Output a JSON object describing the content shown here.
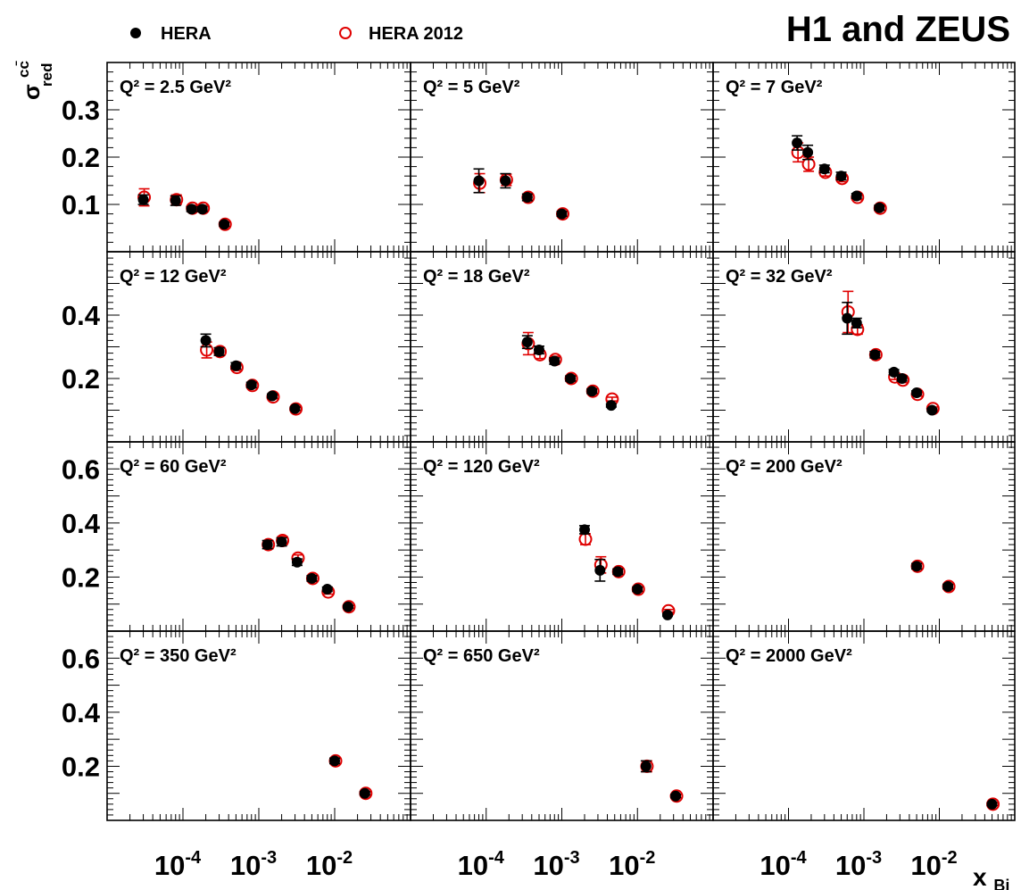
{
  "title": "H1 and ZEUS",
  "legend": [
    {
      "label": "HERA",
      "marker": "filled-circle",
      "color": "#000000"
    },
    {
      "label": "HERA 2012",
      "marker": "open-circle",
      "color": "#e00000"
    }
  ],
  "colors": {
    "hera": "#000000",
    "hera2012": "#e00000"
  },
  "chart_data": {
    "type": "scatter",
    "xlabel": "x",
    "xlabel_sub": "Bj",
    "ylabel": "σ",
    "ylabel_sup": "cc̄",
    "ylabel_sub": "red",
    "x_scale": "log",
    "xlim": [
      1e-05,
      0.1
    ],
    "x_ticks": [
      0.0001,
      0.001,
      0.01
    ],
    "x_tick_labels": [
      {
        "base": "10",
        "exp": "-4"
      },
      {
        "base": "10",
        "exp": "-3"
      },
      {
        "base": "10",
        "exp": "-2"
      }
    ],
    "rows": [
      {
        "ylim": [
          0,
          0.4
        ],
        "y_ticks": [
          0.1,
          0.2,
          0.3
        ],
        "y_tick_labels": [
          "0.1",
          "0.2",
          "0.3"
        ]
      },
      {
        "ylim": [
          0,
          0.6
        ],
        "y_ticks": [
          0.2,
          0.4
        ],
        "y_tick_labels": [
          "0.2",
          "0.4"
        ]
      },
      {
        "ylim": [
          0,
          0.7
        ],
        "y_ticks": [
          0.2,
          0.4,
          0.6
        ],
        "y_tick_labels": [
          "0.2",
          "0.4",
          "0.6"
        ]
      },
      {
        "ylim": [
          0,
          0.7
        ],
        "y_ticks": [
          0.2,
          0.4,
          0.6
        ],
        "y_tick_labels": [
          "0.2",
          "0.4",
          "0.6"
        ]
      }
    ],
    "panels": [
      {
        "label": "Q² = 2.5 GeV²",
        "hera": [
          {
            "x": 3e-05,
            "y": 0.11,
            "err": 0.01
          },
          {
            "x": 8e-05,
            "y": 0.108,
            "err": 0.01
          },
          {
            "x": 0.00013,
            "y": 0.09,
            "err": 0.005
          },
          {
            "x": 0.00018,
            "y": 0.09,
            "err": 0.005
          },
          {
            "x": 0.00035,
            "y": 0.058,
            "err": 0.004
          }
        ],
        "hera2012": [
          {
            "x": 3e-05,
            "y": 0.115,
            "err": 0.018
          },
          {
            "x": 8e-05,
            "y": 0.11,
            "err": 0.01
          },
          {
            "x": 0.00013,
            "y": 0.092,
            "err": 0.006
          },
          {
            "x": 0.00018,
            "y": 0.092,
            "err": 0.006
          },
          {
            "x": 0.00035,
            "y": 0.058,
            "err": 0.005
          }
        ]
      },
      {
        "label": "Q² = 5 GeV²",
        "hera": [
          {
            "x": 8e-05,
            "y": 0.15,
            "err": 0.025
          },
          {
            "x": 0.00018,
            "y": 0.15,
            "err": 0.015
          },
          {
            "x": 0.00035,
            "y": 0.115,
            "err": 0.007
          },
          {
            "x": 0.001,
            "y": 0.08,
            "err": 0.005
          }
        ],
        "hera2012": [
          {
            "x": 8e-05,
            "y": 0.145,
            "err": 0.02
          },
          {
            "x": 0.00018,
            "y": 0.152,
            "err": 0.012
          },
          {
            "x": 0.00035,
            "y": 0.115,
            "err": 0.006
          },
          {
            "x": 0.001,
            "y": 0.08,
            "err": 0.005
          }
        ]
      },
      {
        "label": "Q² = 7 GeV²",
        "hera": [
          {
            "x": 0.00013,
            "y": 0.23,
            "err": 0.015
          },
          {
            "x": 0.00018,
            "y": 0.21,
            "err": 0.015
          },
          {
            "x": 0.0003,
            "y": 0.175,
            "err": 0.008
          },
          {
            "x": 0.0005,
            "y": 0.16,
            "err": 0.008
          },
          {
            "x": 0.0008,
            "y": 0.118,
            "err": 0.005
          },
          {
            "x": 0.0016,
            "y": 0.093,
            "err": 0.005
          }
        ],
        "hera2012": [
          {
            "x": 0.00013,
            "y": 0.21,
            "err": 0.02
          },
          {
            "x": 0.00018,
            "y": 0.185,
            "err": 0.015
          },
          {
            "x": 0.0003,
            "y": 0.168,
            "err": 0.008
          },
          {
            "x": 0.0005,
            "y": 0.155,
            "err": 0.007
          },
          {
            "x": 0.0008,
            "y": 0.115,
            "err": 0.005
          },
          {
            "x": 0.0016,
            "y": 0.092,
            "err": 0.004
          }
        ]
      },
      {
        "label": "Q² = 12 GeV²",
        "hera": [
          {
            "x": 0.0002,
            "y": 0.32,
            "err": 0.02
          },
          {
            "x": 0.0003,
            "y": 0.285,
            "err": 0.012
          },
          {
            "x": 0.0005,
            "y": 0.24,
            "err": 0.01
          },
          {
            "x": 0.0008,
            "y": 0.18,
            "err": 0.008
          },
          {
            "x": 0.0015,
            "y": 0.145,
            "err": 0.006
          },
          {
            "x": 0.003,
            "y": 0.105,
            "err": 0.005
          }
        ],
        "hera2012": [
          {
            "x": 0.0002,
            "y": 0.29,
            "err": 0.025
          },
          {
            "x": 0.0003,
            "y": 0.285,
            "err": 0.012
          },
          {
            "x": 0.0005,
            "y": 0.235,
            "err": 0.01
          },
          {
            "x": 0.0008,
            "y": 0.178,
            "err": 0.008
          },
          {
            "x": 0.0015,
            "y": 0.142,
            "err": 0.006
          },
          {
            "x": 0.003,
            "y": 0.104,
            "err": 0.005
          }
        ]
      },
      {
        "label": "Q² = 18 GeV²",
        "hera": [
          {
            "x": 0.00035,
            "y": 0.315,
            "err": 0.02
          },
          {
            "x": 0.0005,
            "y": 0.29,
            "err": 0.012
          },
          {
            "x": 0.0008,
            "y": 0.255,
            "err": 0.01
          },
          {
            "x": 0.0013,
            "y": 0.2,
            "err": 0.008
          },
          {
            "x": 0.0025,
            "y": 0.16,
            "err": 0.007
          },
          {
            "x": 0.0045,
            "y": 0.115,
            "err": 0.005
          }
        ],
        "hera2012": [
          {
            "x": 0.00035,
            "y": 0.31,
            "err": 0.035
          },
          {
            "x": 0.0005,
            "y": 0.275,
            "err": 0.012
          },
          {
            "x": 0.0008,
            "y": 0.26,
            "err": 0.01
          },
          {
            "x": 0.0013,
            "y": 0.2,
            "err": 0.008
          },
          {
            "x": 0.0025,
            "y": 0.16,
            "err": 0.007
          },
          {
            "x": 0.0045,
            "y": 0.135,
            "err": 0.006
          }
        ]
      },
      {
        "label": "Q² = 32 GeV²",
        "hera": [
          {
            "x": 0.0006,
            "y": 0.39,
            "err": 0.05
          },
          {
            "x": 0.0008,
            "y": 0.375,
            "err": 0.015
          },
          {
            "x": 0.0014,
            "y": 0.275,
            "err": 0.01
          },
          {
            "x": 0.0025,
            "y": 0.22,
            "err": 0.008
          },
          {
            "x": 0.0032,
            "y": 0.2,
            "err": 0.008
          },
          {
            "x": 0.005,
            "y": 0.155,
            "err": 0.006
          },
          {
            "x": 0.008,
            "y": 0.1,
            "err": 0.005
          }
        ],
        "hera2012": [
          {
            "x": 0.0006,
            "y": 0.41,
            "err": 0.065
          },
          {
            "x": 0.0008,
            "y": 0.355,
            "err": 0.015
          },
          {
            "x": 0.0014,
            "y": 0.275,
            "err": 0.01
          },
          {
            "x": 0.0025,
            "y": 0.205,
            "err": 0.008
          },
          {
            "x": 0.0032,
            "y": 0.195,
            "err": 0.008
          },
          {
            "x": 0.005,
            "y": 0.15,
            "err": 0.006
          },
          {
            "x": 0.008,
            "y": 0.105,
            "err": 0.005
          }
        ]
      },
      {
        "label": "Q² = 60 GeV²",
        "hera": [
          {
            "x": 0.0013,
            "y": 0.32,
            "err": 0.015
          },
          {
            "x": 0.002,
            "y": 0.33,
            "err": 0.015
          },
          {
            "x": 0.0032,
            "y": 0.255,
            "err": 0.012
          },
          {
            "x": 0.005,
            "y": 0.195,
            "err": 0.01
          },
          {
            "x": 0.008,
            "y": 0.155,
            "err": 0.008
          },
          {
            "x": 0.015,
            "y": 0.09,
            "err": 0.005
          }
        ],
        "hera2012": [
          {
            "x": 0.0013,
            "y": 0.32,
            "err": 0.015
          },
          {
            "x": 0.002,
            "y": 0.335,
            "err": 0.015
          },
          {
            "x": 0.0032,
            "y": 0.27,
            "err": 0.012
          },
          {
            "x": 0.005,
            "y": 0.195,
            "err": 0.01
          },
          {
            "x": 0.008,
            "y": 0.145,
            "err": 0.008
          },
          {
            "x": 0.015,
            "y": 0.09,
            "err": 0.005
          }
        ]
      },
      {
        "label": "Q² = 120 GeV²",
        "hera": [
          {
            "x": 0.002,
            "y": 0.375,
            "err": 0.015
          },
          {
            "x": 0.0032,
            "y": 0.225,
            "err": 0.04
          },
          {
            "x": 0.0055,
            "y": 0.22,
            "err": 0.01
          },
          {
            "x": 0.01,
            "y": 0.155,
            "err": 0.008
          },
          {
            "x": 0.025,
            "y": 0.06,
            "err": 0.004
          }
        ],
        "hera2012": [
          {
            "x": 0.002,
            "y": 0.34,
            "err": 0.02
          },
          {
            "x": 0.0032,
            "y": 0.245,
            "err": 0.03
          },
          {
            "x": 0.0055,
            "y": 0.22,
            "err": 0.01
          },
          {
            "x": 0.01,
            "y": 0.155,
            "err": 0.008
          },
          {
            "x": 0.025,
            "y": 0.075,
            "err": 0.005
          }
        ]
      },
      {
        "label": "Q² = 200 GeV²",
        "hera": [
          {
            "x": 0.005,
            "y": 0.24,
            "err": 0.01
          },
          {
            "x": 0.013,
            "y": 0.165,
            "err": 0.008
          }
        ],
        "hera2012": [
          {
            "x": 0.005,
            "y": 0.24,
            "err": 0.01
          },
          {
            "x": 0.013,
            "y": 0.165,
            "err": 0.008
          }
        ]
      },
      {
        "label": "Q² = 350 GeV²",
        "hera": [
          {
            "x": 0.01,
            "y": 0.22,
            "err": 0.01
          },
          {
            "x": 0.025,
            "y": 0.1,
            "err": 0.006
          }
        ],
        "hera2012": [
          {
            "x": 0.01,
            "y": 0.22,
            "err": 0.01
          },
          {
            "x": 0.025,
            "y": 0.1,
            "err": 0.006
          }
        ]
      },
      {
        "label": "Q² = 650 GeV²",
        "hera": [
          {
            "x": 0.013,
            "y": 0.2,
            "err": 0.02
          },
          {
            "x": 0.032,
            "y": 0.09,
            "err": 0.006
          }
        ],
        "hera2012": [
          {
            "x": 0.013,
            "y": 0.2,
            "err": 0.02
          },
          {
            "x": 0.032,
            "y": 0.09,
            "err": 0.006
          }
        ]
      },
      {
        "label": "Q² = 2000 GeV²",
        "hera": [
          {
            "x": 0.05,
            "y": 0.06,
            "err": 0.005
          }
        ],
        "hera2012": [
          {
            "x": 0.05,
            "y": 0.06,
            "err": 0.005
          }
        ]
      }
    ]
  }
}
